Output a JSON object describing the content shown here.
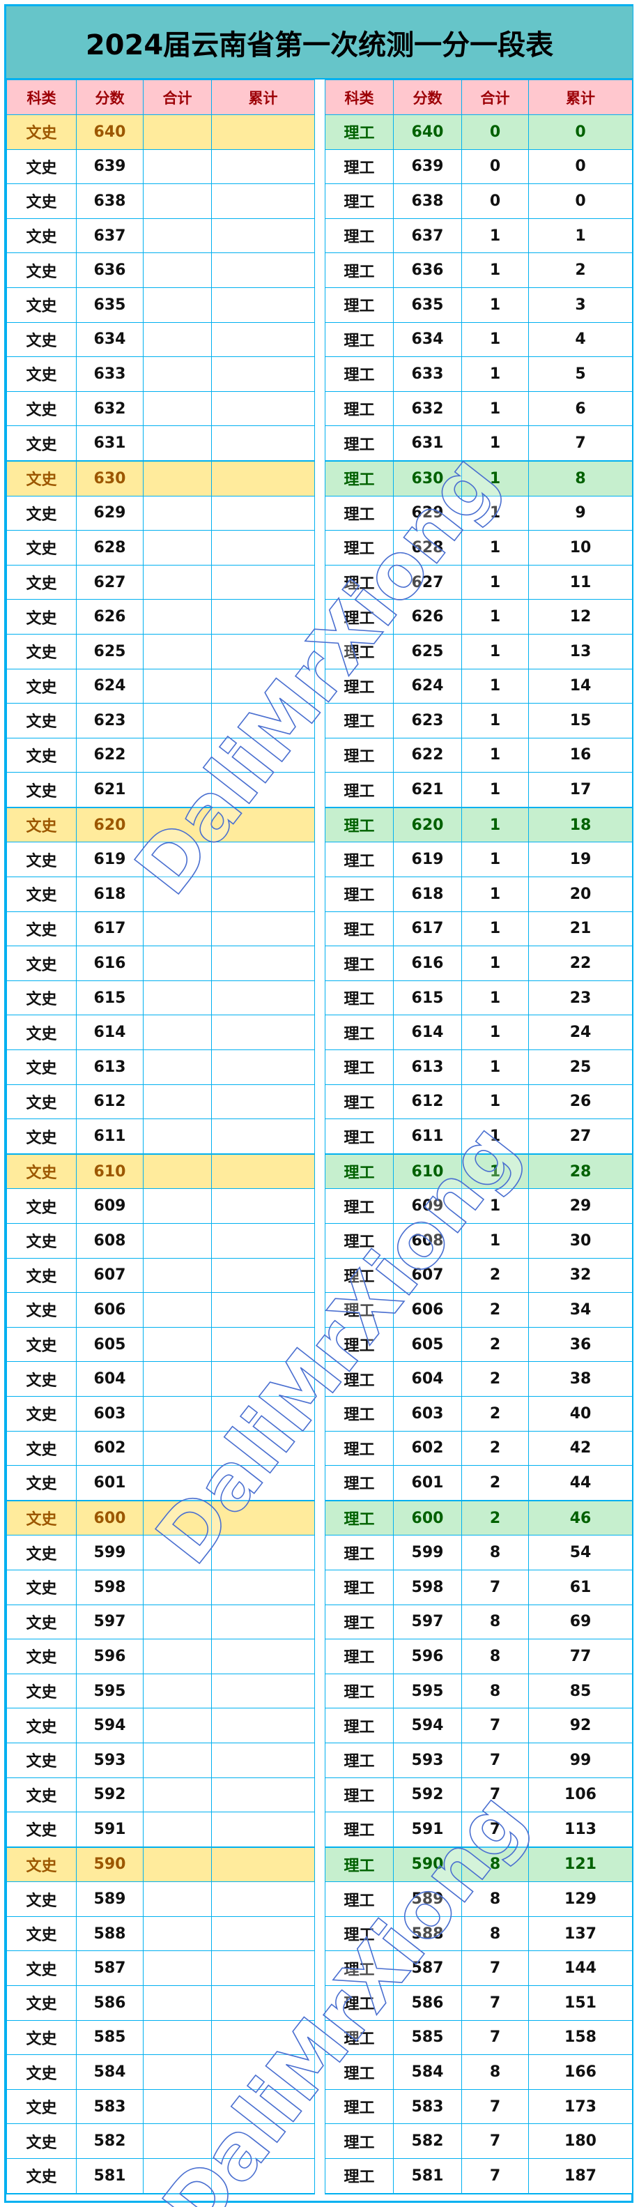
{
  "title": "2024届云南省第一次统测一分一段表",
  "watermark": "DaliMrXiong",
  "colors": {
    "border": "#00b0f0",
    "title_bg": "#66c5c9",
    "header_bg": "#ffc7ce",
    "header_text": "#9c0006",
    "left_highlight_bg": "#ffeb9c",
    "left_highlight_text": "#9c5700",
    "right_highlight_bg": "#c6efce",
    "right_highlight_text": "#006100"
  },
  "columns": [
    "科类",
    "分数",
    "合计",
    "累计"
  ],
  "left": {
    "rows": [
      [
        "文史",
        "640",
        "",
        ""
      ],
      [
        "文史",
        "639",
        "",
        ""
      ],
      [
        "文史",
        "638",
        "",
        ""
      ],
      [
        "文史",
        "637",
        "",
        ""
      ],
      [
        "文史",
        "636",
        "",
        ""
      ],
      [
        "文史",
        "635",
        "",
        ""
      ],
      [
        "文史",
        "634",
        "",
        ""
      ],
      [
        "文史",
        "633",
        "",
        ""
      ],
      [
        "文史",
        "632",
        "",
        ""
      ],
      [
        "文史",
        "631",
        "",
        ""
      ],
      [
        "文史",
        "630",
        "",
        ""
      ],
      [
        "文史",
        "629",
        "",
        ""
      ],
      [
        "文史",
        "628",
        "",
        ""
      ],
      [
        "文史",
        "627",
        "",
        ""
      ],
      [
        "文史",
        "626",
        "",
        ""
      ],
      [
        "文史",
        "625",
        "",
        ""
      ],
      [
        "文史",
        "624",
        "",
        ""
      ],
      [
        "文史",
        "623",
        "",
        ""
      ],
      [
        "文史",
        "622",
        "",
        ""
      ],
      [
        "文史",
        "621",
        "",
        ""
      ],
      [
        "文史",
        "620",
        "",
        ""
      ],
      [
        "文史",
        "619",
        "",
        ""
      ],
      [
        "文史",
        "618",
        "",
        ""
      ],
      [
        "文史",
        "617",
        "",
        ""
      ],
      [
        "文史",
        "616",
        "",
        ""
      ],
      [
        "文史",
        "615",
        "",
        ""
      ],
      [
        "文史",
        "614",
        "",
        ""
      ],
      [
        "文史",
        "613",
        "",
        ""
      ],
      [
        "文史",
        "612",
        "",
        ""
      ],
      [
        "文史",
        "611",
        "",
        ""
      ],
      [
        "文史",
        "610",
        "",
        ""
      ],
      [
        "文史",
        "609",
        "",
        ""
      ],
      [
        "文史",
        "608",
        "",
        ""
      ],
      [
        "文史",
        "607",
        "",
        ""
      ],
      [
        "文史",
        "606",
        "",
        ""
      ],
      [
        "文史",
        "605",
        "",
        ""
      ],
      [
        "文史",
        "604",
        "",
        ""
      ],
      [
        "文史",
        "603",
        "",
        ""
      ],
      [
        "文史",
        "602",
        "",
        ""
      ],
      [
        "文史",
        "601",
        "",
        ""
      ],
      [
        "文史",
        "600",
        "",
        ""
      ],
      [
        "文史",
        "599",
        "",
        ""
      ],
      [
        "文史",
        "598",
        "",
        ""
      ],
      [
        "文史",
        "597",
        "",
        ""
      ],
      [
        "文史",
        "596",
        "",
        ""
      ],
      [
        "文史",
        "595",
        "",
        ""
      ],
      [
        "文史",
        "594",
        "",
        ""
      ],
      [
        "文史",
        "593",
        "",
        ""
      ],
      [
        "文史",
        "592",
        "",
        ""
      ],
      [
        "文史",
        "591",
        "",
        ""
      ],
      [
        "文史",
        "590",
        "",
        ""
      ],
      [
        "文史",
        "589",
        "",
        ""
      ],
      [
        "文史",
        "588",
        "",
        ""
      ],
      [
        "文史",
        "587",
        "",
        ""
      ],
      [
        "文史",
        "586",
        "",
        ""
      ],
      [
        "文史",
        "585",
        "",
        ""
      ],
      [
        "文史",
        "584",
        "",
        ""
      ],
      [
        "文史",
        "583",
        "",
        ""
      ],
      [
        "文史",
        "582",
        "",
        ""
      ],
      [
        "文史",
        "581",
        "",
        ""
      ]
    ]
  },
  "right": {
    "rows": [
      [
        "理工",
        "640",
        "0",
        "0"
      ],
      [
        "理工",
        "639",
        "0",
        "0"
      ],
      [
        "理工",
        "638",
        "0",
        "0"
      ],
      [
        "理工",
        "637",
        "1",
        "1"
      ],
      [
        "理工",
        "636",
        "1",
        "2"
      ],
      [
        "理工",
        "635",
        "1",
        "3"
      ],
      [
        "理工",
        "634",
        "1",
        "4"
      ],
      [
        "理工",
        "633",
        "1",
        "5"
      ],
      [
        "理工",
        "632",
        "1",
        "6"
      ],
      [
        "理工",
        "631",
        "1",
        "7"
      ],
      [
        "理工",
        "630",
        "1",
        "8"
      ],
      [
        "理工",
        "629",
        "1",
        "9"
      ],
      [
        "理工",
        "628",
        "1",
        "10"
      ],
      [
        "理工",
        "627",
        "1",
        "11"
      ],
      [
        "理工",
        "626",
        "1",
        "12"
      ],
      [
        "理工",
        "625",
        "1",
        "13"
      ],
      [
        "理工",
        "624",
        "1",
        "14"
      ],
      [
        "理工",
        "623",
        "1",
        "15"
      ],
      [
        "理工",
        "622",
        "1",
        "16"
      ],
      [
        "理工",
        "621",
        "1",
        "17"
      ],
      [
        "理工",
        "620",
        "1",
        "18"
      ],
      [
        "理工",
        "619",
        "1",
        "19"
      ],
      [
        "理工",
        "618",
        "1",
        "20"
      ],
      [
        "理工",
        "617",
        "1",
        "21"
      ],
      [
        "理工",
        "616",
        "1",
        "22"
      ],
      [
        "理工",
        "615",
        "1",
        "23"
      ],
      [
        "理工",
        "614",
        "1",
        "24"
      ],
      [
        "理工",
        "613",
        "1",
        "25"
      ],
      [
        "理工",
        "612",
        "1",
        "26"
      ],
      [
        "理工",
        "611",
        "1",
        "27"
      ],
      [
        "理工",
        "610",
        "1",
        "28"
      ],
      [
        "理工",
        "609",
        "1",
        "29"
      ],
      [
        "理工",
        "608",
        "1",
        "30"
      ],
      [
        "理工",
        "607",
        "2",
        "32"
      ],
      [
        "理工",
        "606",
        "2",
        "34"
      ],
      [
        "理工",
        "605",
        "2",
        "36"
      ],
      [
        "理工",
        "604",
        "2",
        "38"
      ],
      [
        "理工",
        "603",
        "2",
        "40"
      ],
      [
        "理工",
        "602",
        "2",
        "42"
      ],
      [
        "理工",
        "601",
        "2",
        "44"
      ],
      [
        "理工",
        "600",
        "2",
        "46"
      ],
      [
        "理工",
        "599",
        "8",
        "54"
      ],
      [
        "理工",
        "598",
        "7",
        "61"
      ],
      [
        "理工",
        "597",
        "8",
        "69"
      ],
      [
        "理工",
        "596",
        "8",
        "77"
      ],
      [
        "理工",
        "595",
        "8",
        "85"
      ],
      [
        "理工",
        "594",
        "7",
        "92"
      ],
      [
        "理工",
        "593",
        "7",
        "99"
      ],
      [
        "理工",
        "592",
        "7",
        "106"
      ],
      [
        "理工",
        "591",
        "7",
        "113"
      ],
      [
        "理工",
        "590",
        "8",
        "121"
      ],
      [
        "理工",
        "589",
        "8",
        "129"
      ],
      [
        "理工",
        "588",
        "8",
        "137"
      ],
      [
        "理工",
        "587",
        "7",
        "144"
      ],
      [
        "理工",
        "586",
        "7",
        "151"
      ],
      [
        "理工",
        "585",
        "7",
        "158"
      ],
      [
        "理工",
        "584",
        "8",
        "166"
      ],
      [
        "理工",
        "583",
        "7",
        "173"
      ],
      [
        "理工",
        "582",
        "7",
        "180"
      ],
      [
        "理工",
        "581",
        "7",
        "187"
      ]
    ]
  }
}
